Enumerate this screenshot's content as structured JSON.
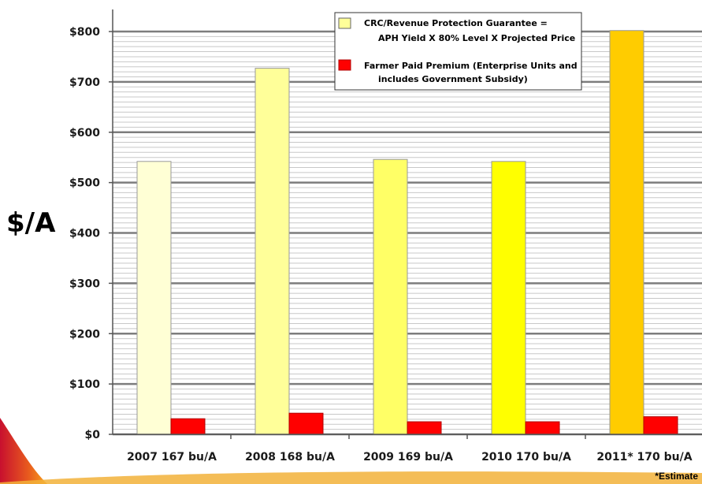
{
  "chart_data": {
    "type": "bar",
    "ylabel": "$/A",
    "ylim": [
      0,
      800
    ],
    "yticks": [
      "$0",
      "$100",
      "$200",
      "$300",
      "$400",
      "$500",
      "$600",
      "$700",
      "$800"
    ],
    "categories": [
      "2007 167 bu/A",
      "2008 168 bu/A",
      "2009 169 bu/A",
      "2010 170 bu/A",
      "2011* 170 bu/A"
    ],
    "series": [
      {
        "name": "CRC/Revenue Protection Guarantee = APH Yield X 80% Level X Projected Price",
        "legend_lines": [
          "CRC/Revenue Protection Guarantee =",
          "APH Yield X 80% Level X Projected Price"
        ],
        "values": [
          542,
          727,
          546,
          542,
          802
        ],
        "colors": [
          "#ffffd5",
          "#ffff99",
          "#ffff66",
          "#ffff00",
          "#ffcc00"
        ]
      },
      {
        "name": "Farmer Paid Premium (Enterprise Units and includes Government Subsidy)",
        "legend_lines": [
          "Farmer Paid Premium (Enterprise Units and",
          "includes Government Subsidy)"
        ],
        "values": [
          31,
          42,
          25,
          25,
          35
        ],
        "colors": [
          "#ff0000",
          "#ff0000",
          "#ff0000",
          "#ff0000",
          "#ff0000"
        ]
      }
    ],
    "grid": true,
    "legend_position": "top-right",
    "footnote": "*Estimate"
  }
}
